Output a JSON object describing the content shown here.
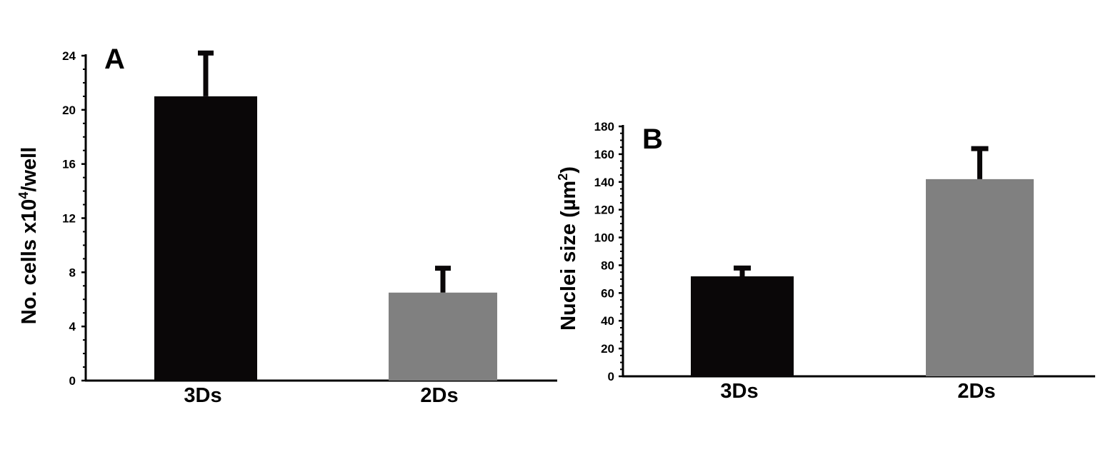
{
  "chart_data": [
    {
      "type": "bar",
      "panel_label": "A",
      "categories": [
        "3Ds",
        "2Ds"
      ],
      "values": [
        21,
        6.5
      ],
      "error_upper": [
        3.2,
        1.8
      ],
      "colors": [
        "#0a0708",
        "#808080"
      ],
      "ylabel_main": "No. cells x10",
      "ylabel_sup": "4",
      "ylabel_tail": "/well",
      "ylim": [
        0,
        24
      ],
      "yticks": [
        0,
        4,
        8,
        12,
        16,
        20,
        24
      ],
      "grid": false
    },
    {
      "type": "bar",
      "panel_label": "B",
      "categories": [
        "3Ds",
        "2Ds"
      ],
      "values": [
        72,
        142
      ],
      "error_upper": [
        6,
        22
      ],
      "colors": [
        "#0a0708",
        "#808080"
      ],
      "ylabel_main": "Nuclei size (µm",
      "ylabel_sup": "2",
      "ylabel_tail": ")",
      "ylim": [
        0,
        180
      ],
      "yticks": [
        0,
        20,
        40,
        60,
        80,
        100,
        120,
        140,
        160,
        180
      ],
      "grid": false
    }
  ]
}
